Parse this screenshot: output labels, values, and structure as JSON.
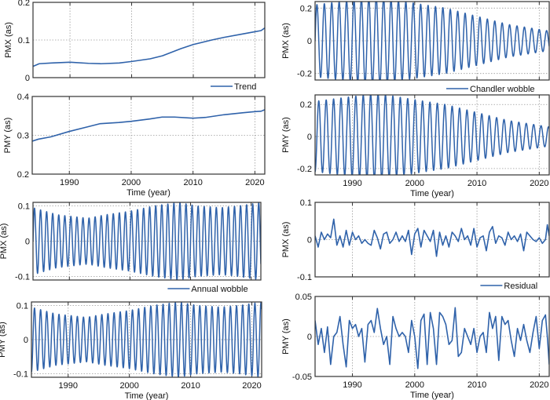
{
  "style": {
    "line_color": "#2f62aa",
    "frame_color": "#333333",
    "grid_color": "#9a9a9a"
  },
  "chart_data": [
    {
      "id": "trend-pmx",
      "type": "line",
      "component": "Trend",
      "ylabel": "PMX (as)",
      "xlabel": "",
      "legend": "Trend",
      "legend_placement": "below-right",
      "xlim": [
        1984,
        2021.6
      ],
      "ylim": [
        0,
        0.2
      ],
      "yticks": [
        0,
        0.1,
        0.2
      ],
      "ytick_labels": [
        "0",
        "0.1",
        "0.2"
      ],
      "xticks": [
        1990,
        2000,
        2010,
        2020
      ],
      "xtick_labels": [],
      "x": [
        1984,
        1985,
        1987,
        1990,
        1993,
        1995,
        1998,
        2000,
        2003,
        2005,
        2008,
        2010,
        2013,
        2015,
        2018,
        2020,
        2021,
        2021.6
      ],
      "y": [
        0.03,
        0.037,
        0.039,
        0.041,
        0.038,
        0.037,
        0.039,
        0.043,
        0.05,
        0.058,
        0.077,
        0.088,
        0.1,
        0.107,
        0.116,
        0.122,
        0.125,
        0.132
      ]
    },
    {
      "id": "trend-pmy",
      "type": "line",
      "component": "Trend",
      "ylabel": "PMY (as)",
      "xlabel": "Time (year)",
      "xlim": [
        1984,
        2021.6
      ],
      "ylim": [
        0.2,
        0.4
      ],
      "yticks": [
        0.2,
        0.3,
        0.4
      ],
      "ytick_labels": [
        "0.2",
        "0.3",
        "0.4"
      ],
      "xticks": [
        1990,
        2000,
        2010,
        2020
      ],
      "xtick_labels": [
        "1990",
        "2000",
        "2010",
        "2020"
      ],
      "x": [
        1984,
        1985,
        1987,
        1990,
        1993,
        1995,
        1998,
        2000,
        2003,
        2005,
        2007,
        2010,
        2012,
        2015,
        2018,
        2020,
        2021,
        2021.6
      ],
      "y": [
        0.285,
        0.29,
        0.296,
        0.31,
        0.322,
        0.33,
        0.333,
        0.336,
        0.342,
        0.347,
        0.347,
        0.344,
        0.346,
        0.353,
        0.358,
        0.361,
        0.362,
        0.366
      ]
    },
    {
      "id": "chandler-pmx",
      "type": "line",
      "component": "Chandler wobble",
      "ylabel": "PMX (as)",
      "xlabel": "",
      "legend": "Chandler wobble",
      "legend_placement": "below-right",
      "xlim": [
        1984,
        2021.6
      ],
      "ylim": [
        -0.24,
        0.24
      ],
      "yticks": [
        -0.2,
        0,
        0.2
      ],
      "ytick_labels": [
        "-0.2",
        "0",
        "0.2"
      ],
      "xticks": [
        1990,
        2000,
        2010,
        2020
      ],
      "xtick_labels": [],
      "period_years": 1.19,
      "phase": 0,
      "envelope": {
        "x": [
          1984,
          1990,
          1994,
          2000,
          2005,
          2010,
          2015,
          2021.6
        ],
        "amp": [
          0.22,
          0.25,
          0.27,
          0.23,
          0.2,
          0.15,
          0.1,
          0.06
        ]
      }
    },
    {
      "id": "chandler-pmy",
      "type": "line",
      "component": "Chandler wobble",
      "ylabel": "PMY (as)",
      "xlabel": "Time (year)",
      "xlim": [
        1984,
        2021.6
      ],
      "ylim": [
        -0.24,
        0.26
      ],
      "yticks": [
        -0.2,
        0,
        0.2
      ],
      "ytick_labels": [
        "-0.2",
        "0",
        "0.2"
      ],
      "xticks": [
        1990,
        2000,
        2010,
        2020
      ],
      "xtick_labels": [
        "1990",
        "2000",
        "2010",
        "2020"
      ],
      "period_years": 1.19,
      "phase": -1.5708,
      "envelope": {
        "x": [
          1984,
          1990,
          1994,
          2000,
          2005,
          2010,
          2015,
          2021.6
        ],
        "amp": [
          0.22,
          0.25,
          0.27,
          0.23,
          0.2,
          0.15,
          0.1,
          0.06
        ]
      }
    },
    {
      "id": "annual-pmx",
      "type": "line",
      "component": "Annual wobble",
      "ylabel": "PMX (as)",
      "xlabel": "",
      "legend": "Annual wobble",
      "legend_placement": "below-right",
      "xlim": [
        1984,
        2021.6
      ],
      "ylim": [
        -0.11,
        0.11
      ],
      "yticks": [
        -0.1,
        0,
        0.1
      ],
      "ytick_labels": [
        "-0.1",
        "0",
        "0.1"
      ],
      "xticks": [
        1990,
        2000,
        2010,
        2020
      ],
      "xtick_labels": [],
      "period_years": 1.0,
      "phase": 0,
      "envelope": {
        "x": [
          1984,
          1985,
          1988,
          1993,
          1996,
          2000,
          2004,
          2008,
          2011,
          2015,
          2018,
          2021.6
        ],
        "amp": [
          0.095,
          0.09,
          0.075,
          0.065,
          0.075,
          0.085,
          0.1,
          0.11,
          0.1,
          0.095,
          0.1,
          0.11
        ]
      }
    },
    {
      "id": "annual-pmy",
      "type": "line",
      "component": "Annual wobble",
      "ylabel": "PMY (as)",
      "xlabel": "Time (year)",
      "xlim": [
        1984,
        2021.6
      ],
      "ylim": [
        -0.11,
        0.11
      ],
      "yticks": [
        -0.1,
        0,
        0.1
      ],
      "ytick_labels": [
        "-0.1",
        "0",
        "0.1"
      ],
      "xticks": [
        1990,
        2000,
        2010,
        2020
      ],
      "xtick_labels": [
        "1990",
        "2000",
        "2010",
        "2020"
      ],
      "period_years": 1.0,
      "phase": -1.5708,
      "envelope": {
        "x": [
          1984,
          1985,
          1988,
          1993,
          1996,
          2000,
          2004,
          2008,
          2011,
          2015,
          2018,
          2021.6
        ],
        "amp": [
          0.095,
          0.09,
          0.075,
          0.065,
          0.075,
          0.085,
          0.1,
          0.11,
          0.1,
          0.095,
          0.1,
          0.11
        ]
      }
    },
    {
      "id": "residual-pmx",
      "type": "line",
      "component": "Residual",
      "ylabel": "PMX (as)",
      "xlabel": "",
      "legend": "Residual",
      "legend_placement": "below-right",
      "xlim": [
        1984,
        2021.6
      ],
      "ylim": [
        -0.1,
        0.1
      ],
      "yticks": [
        -0.1,
        0,
        0.1
      ],
      "ytick_labels": [
        "-0.1",
        "0",
        "0.1"
      ],
      "xticks": [
        1990,
        2000,
        2010,
        2020
      ],
      "xtick_labels": [],
      "x": [
        1984,
        1984.5,
        1985,
        1985.5,
        1986,
        1986.5,
        1987,
        1987.5,
        1988,
        1988.5,
        1989,
        1989.5,
        1990,
        1990.5,
        1991,
        1991.5,
        1992,
        1992.5,
        1993,
        1993.5,
        1994,
        1994.5,
        1995,
        1995.5,
        1996,
        1996.5,
        1997,
        1997.5,
        1998,
        1998.5,
        1999,
        1999.5,
        2000,
        2000.5,
        2001,
        2001.5,
        2002,
        2002.5,
        2003,
        2003.5,
        2004,
        2004.5,
        2005,
        2005.5,
        2006,
        2006.5,
        2007,
        2007.5,
        2008,
        2008.5,
        2009,
        2009.5,
        2010,
        2010.5,
        2011,
        2011.5,
        2012,
        2012.5,
        2013,
        2013.5,
        2014,
        2014.5,
        2015,
        2015.5,
        2016,
        2016.5,
        2017,
        2017.5,
        2018,
        2018.5,
        2019,
        2019.5,
        2020,
        2020.5,
        2021,
        2021.3,
        2021.6
      ],
      "y": [
        0.01,
        -0.02,
        0.02,
        0.0,
        0.015,
        0.005,
        0.055,
        -0.015,
        0.01,
        -0.02,
        0.025,
        -0.015,
        0.02,
        0.0,
        0.01,
        -0.01,
        0.0,
        -0.01,
        -0.015,
        0.025,
        0.005,
        -0.025,
        0.015,
        0.02,
        -0.01,
        0.0,
        0.02,
        -0.005,
        0.01,
        -0.005,
        0.025,
        -0.04,
        0.015,
        0.03,
        -0.02,
        0.025,
        0.01,
        -0.005,
        0.025,
        -0.045,
        0.02,
        -0.015,
        0.01,
        -0.02,
        0.02,
        0.01,
        -0.005,
        0.03,
        0.0,
        0.01,
        -0.015,
        0.03,
        -0.02,
        0.005,
        0.01,
        -0.03,
        0.02,
        0.035,
        -0.01,
        0.01,
        0.005,
        -0.015,
        0.02,
        0.0,
        0.01,
        -0.005,
        0.015,
        -0.03,
        0.02,
        0.01,
        0.0,
        -0.005,
        0.005,
        -0.01,
        0.0,
        0.04,
        0.01
      ]
    },
    {
      "id": "residual-pmy",
      "type": "line",
      "component": "Residual",
      "ylabel": "PMY (as)",
      "xlabel": "Time (year)",
      "xlim": [
        1984,
        2021.6
      ],
      "ylim": [
        -0.05,
        0.05
      ],
      "yticks": [
        -0.05,
        0,
        0.05
      ],
      "ytick_labels": [
        "-0.05",
        "0",
        "0.05"
      ],
      "xticks": [
        1990,
        2000,
        2010,
        2020
      ],
      "xtick_labels": [
        "1990",
        "2000",
        "2010",
        "2020"
      ],
      "x": [
        1984,
        1984.5,
        1985,
        1985.5,
        1986,
        1986.5,
        1987,
        1987.5,
        1988,
        1988.5,
        1989,
        1989.5,
        1990,
        1990.5,
        1991,
        1991.5,
        1992,
        1992.5,
        1993,
        1993.5,
        1994,
        1994.5,
        1995,
        1995.5,
        1996,
        1996.5,
        1997,
        1997.5,
        1998,
        1998.5,
        1999,
        1999.5,
        2000,
        2000.5,
        2001,
        2001.5,
        2002,
        2002.5,
        2003,
        2003.5,
        2004,
        2004.5,
        2005,
        2005.5,
        2006,
        2006.5,
        2007,
        2007.5,
        2008,
        2008.5,
        2009,
        2009.5,
        2010,
        2010.5,
        2011,
        2011.5,
        2012,
        2012.5,
        2013,
        2013.5,
        2014,
        2014.5,
        2015,
        2015.5,
        2016,
        2016.5,
        2017,
        2017.5,
        2018,
        2018.5,
        2019,
        2019.5,
        2020,
        2020.5,
        2021,
        2021.3,
        2021.6
      ],
      "y": [
        0.02,
        -0.01,
        0.01,
        -0.02,
        0.012,
        -0.035,
        0.0,
        0.005,
        0.025,
        -0.01,
        -0.038,
        0.02,
        0.01,
        0.015,
        0.0,
        0.01,
        -0.032,
        0.015,
        0.02,
        0.005,
        0.035,
        0.01,
        -0.01,
        0.0,
        -0.035,
        0.025,
        0.01,
        0.0,
        0.005,
        0.0,
        -0.02,
        0.02,
        0.0,
        -0.04,
        0.02,
        0.028,
        -0.035,
        0.03,
        0.01,
        -0.035,
        0.03,
        0.025,
        0.015,
        -0.01,
        -0.005,
        0.036,
        -0.025,
        -0.02,
        0.01,
        0.0,
        -0.01,
        0.01,
        -0.02,
        0.0,
        0.005,
        -0.02,
        0.03,
        0.01,
        0.025,
        -0.03,
        0.025,
        0.015,
        0.02,
        -0.005,
        -0.025,
        0.01,
        -0.005,
        0.015,
        -0.005,
        -0.02,
        0.005,
        0.025,
        -0.015,
        0.02,
        0.027,
        0.0,
        -0.035
      ]
    }
  ]
}
